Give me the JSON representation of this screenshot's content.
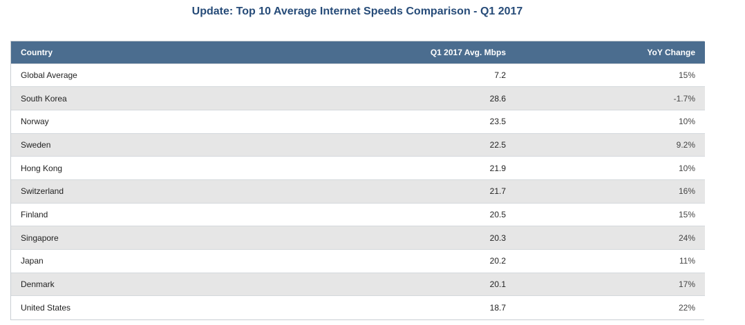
{
  "chart_data": {
    "type": "table",
    "title": "Update: Top 10 Average Internet Speeds Comparison - Q1 2017",
    "columns": [
      "Country",
      "Q1 2017 Avg. Mbps",
      "YoY Change"
    ],
    "rows": [
      {
        "country": "Global Average",
        "mbps": "7.2",
        "yoy": "15%"
      },
      {
        "country": "South Korea",
        "mbps": "28.6",
        "yoy": "-1.7%"
      },
      {
        "country": "Norway",
        "mbps": "23.5",
        "yoy": "10%"
      },
      {
        "country": "Sweden",
        "mbps": "22.5",
        "yoy": "9.2%"
      },
      {
        "country": "Hong Kong",
        "mbps": "21.9",
        "yoy": "10%"
      },
      {
        "country": "Switzerland",
        "mbps": "21.7",
        "yoy": "16%"
      },
      {
        "country": "Finland",
        "mbps": "20.5",
        "yoy": "15%"
      },
      {
        "country": "Singapore",
        "mbps": "20.3",
        "yoy": "24%"
      },
      {
        "country": "Japan",
        "mbps": "20.2",
        "yoy": "11%"
      },
      {
        "country": "Denmark",
        "mbps": "20.1",
        "yoy": "17%"
      },
      {
        "country": "United States",
        "mbps": "18.7",
        "yoy": "22%"
      }
    ]
  },
  "colors": {
    "title": "#264b78",
    "header_bg": "#4b6d8f",
    "row_alt": "#e6e6e6"
  }
}
